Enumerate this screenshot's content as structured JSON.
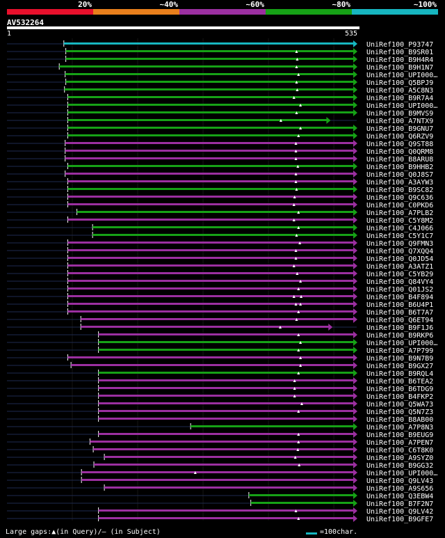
{
  "colors": {
    "red": "#e8102c",
    "orange": "#e87f1c",
    "purple": "#9b2fa0",
    "green": "#16a116",
    "cyan": "#17b6c0",
    "guide": "#1e2a50",
    "marker": "#ffffff"
  },
  "legend": [
    {
      "label": "20%",
      "color": "#e8102c"
    },
    {
      "label": "~40%",
      "color": "#e87f1c"
    },
    {
      "label": "~60%",
      "color": "#9b2fa0"
    },
    {
      "label": "~80%",
      "color": "#16a116"
    },
    {
      "label": "~100%",
      "color": "#17b6c0"
    }
  ],
  "query": {
    "name": "AV532264",
    "start": "1",
    "end": "535",
    "length": 535
  },
  "footer": {
    "gaps_text": "Large gaps:▲(in Query)/– (in Subject)",
    "scale_text": "=100char.",
    "scale_color": "#17b6c0"
  },
  "chart_data": {
    "type": "alignment",
    "title": "AV532264",
    "query_range": [
      1,
      535
    ],
    "hits": [
      {
        "name": "UniRef100_P93747",
        "start": 87,
        "end": 535,
        "color": "cyan",
        "gaps": []
      },
      {
        "name": "UniRef100_B9SR01",
        "start": 90,
        "end": 535,
        "color": "green",
        "gaps": [
          443
        ]
      },
      {
        "name": "UniRef100_B9H4R4",
        "start": 90,
        "end": 535,
        "color": "green",
        "gaps": [
          444
        ]
      },
      {
        "name": "UniRef100_B9H1N7",
        "start": 80,
        "end": 535,
        "color": "green",
        "gaps": [
          443
        ]
      },
      {
        "name": "UniRef100_UPI000…",
        "start": 89,
        "end": 535,
        "color": "green",
        "gaps": [
          446
        ]
      },
      {
        "name": "UniRef100_Q5BPJ9",
        "start": 90,
        "end": 535,
        "color": "green",
        "gaps": [
          443
        ]
      },
      {
        "name": "UniRef100_A5C8N3",
        "start": 88,
        "end": 535,
        "color": "green",
        "gaps": [
          444
        ]
      },
      {
        "name": "UniRef100_B9R7A4",
        "start": 93,
        "end": 535,
        "color": "green",
        "gaps": [
          439
        ]
      },
      {
        "name": "UniRef100_UPI000…",
        "start": 93,
        "end": 535,
        "color": "green",
        "gaps": [
          449
        ]
      },
      {
        "name": "UniRef100_B9MVS9",
        "start": 93,
        "end": 535,
        "color": "green",
        "gaps": [
          443
        ]
      },
      {
        "name": "UniRef100_A7NTX9",
        "start": 93,
        "end": 494,
        "color": "green",
        "gaps": [
          419
        ]
      },
      {
        "name": "UniRef100_B9GNU7",
        "start": 93,
        "end": 535,
        "color": "green",
        "gaps": [
          449
        ]
      },
      {
        "name": "UniRef100_Q6RZV9",
        "start": 93,
        "end": 535,
        "color": "green",
        "gaps": [
          446
        ]
      },
      {
        "name": "UniRef100_Q9ST88",
        "start": 89,
        "end": 535,
        "color": "purple",
        "gaps": [
          442
        ]
      },
      {
        "name": "UniRef100_Q0QRM8",
        "start": 89,
        "end": 535,
        "color": "purple",
        "gaps": [
          442
        ]
      },
      {
        "name": "UniRef100_B8ARU8",
        "start": 89,
        "end": 535,
        "color": "purple",
        "gaps": [
          442
        ]
      },
      {
        "name": "UniRef100_B9HHB2",
        "start": 93,
        "end": 535,
        "color": "green",
        "gaps": [
          445
        ]
      },
      {
        "name": "UniRef100_Q0J8S7",
        "start": 89,
        "end": 535,
        "color": "purple",
        "gaps": [
          442
        ]
      },
      {
        "name": "UniRef100_A3AYW3",
        "start": 93,
        "end": 535,
        "color": "purple",
        "gaps": [
          442
        ]
      },
      {
        "name": "UniRef100_B9SC82",
        "start": 93,
        "end": 535,
        "color": "green",
        "gaps": [
          443
        ]
      },
      {
        "name": "UniRef100_Q9C636",
        "start": 93,
        "end": 535,
        "color": "purple",
        "gaps": [
          440
        ]
      },
      {
        "name": "UniRef100_C0PKD6",
        "start": 93,
        "end": 535,
        "color": "purple",
        "gaps": [
          439
        ]
      },
      {
        "name": "UniRef100_A7PLB2",
        "start": 107,
        "end": 535,
        "color": "green",
        "gaps": [
          446
        ]
      },
      {
        "name": "UniRef100_C5Y8M2",
        "start": 93,
        "end": 535,
        "color": "purple",
        "gaps": [
          439
        ]
      },
      {
        "name": "UniRef100_C4J066",
        "start": 131,
        "end": 535,
        "color": "green",
        "gaps": [
          446
        ]
      },
      {
        "name": "UniRef100_C5Y1C7",
        "start": 131,
        "end": 535,
        "color": "green",
        "gaps": [
          443
        ]
      },
      {
        "name": "UniRef100_Q9FMN3",
        "start": 93,
        "end": 535,
        "color": "purple",
        "gaps": [
          448
        ]
      },
      {
        "name": "UniRef100_Q7XQQ4",
        "start": 93,
        "end": 535,
        "color": "purple",
        "gaps": [
          442
        ]
      },
      {
        "name": "UniRef100_Q0JD54",
        "start": 93,
        "end": 535,
        "color": "purple",
        "gaps": [
          442
        ]
      },
      {
        "name": "UniRef100_A3ATZ1",
        "start": 93,
        "end": 535,
        "color": "purple",
        "gaps": [
          439
        ]
      },
      {
        "name": "UniRef100_C5YB29",
        "start": 93,
        "end": 535,
        "color": "purple",
        "gaps": [
          444
        ]
      },
      {
        "name": "UniRef100_Q84VY4",
        "start": 93,
        "end": 535,
        "color": "purple",
        "gaps": [
          449
        ]
      },
      {
        "name": "UniRef100_Q01JS2",
        "start": 93,
        "end": 535,
        "color": "purple",
        "gaps": [
          446
        ]
      },
      {
        "name": "UniRef100_B4F894",
        "start": 93,
        "end": 535,
        "color": "purple",
        "gaps": [
          439,
          450
        ]
      },
      {
        "name": "UniRef100_B6U4P1",
        "start": 93,
        "end": 535,
        "color": "purple",
        "gaps": [
          442,
          449
        ]
      },
      {
        "name": "UniRef100_B6T7A7",
        "start": 93,
        "end": 535,
        "color": "purple",
        "gaps": [
          446
        ]
      },
      {
        "name": "UniRef100_Q6ET94",
        "start": 113,
        "end": 535,
        "color": "purple",
        "gaps": [
          443
        ]
      },
      {
        "name": "UniRef100_B9F1J6",
        "start": 113,
        "end": 497,
        "color": "purple",
        "gaps": [
          418
        ]
      },
      {
        "name": "UniRef100_B9RKP6",
        "start": 140,
        "end": 535,
        "color": "purple",
        "gaps": [
          446
        ]
      },
      {
        "name": "UniRef100_UPI000…",
        "start": 140,
        "end": 535,
        "color": "green",
        "gaps": [
          449
        ]
      },
      {
        "name": "UniRef100_A7P799",
        "start": 140,
        "end": 535,
        "color": "green",
        "gaps": [
          446
        ]
      },
      {
        "name": "UniRef100_B9N7B9",
        "start": 93,
        "end": 535,
        "color": "purple",
        "gaps": [
          449
        ]
      },
      {
        "name": "UniRef100_B9GX27",
        "start": 98,
        "end": 535,
        "color": "purple",
        "gaps": [
          449
        ]
      },
      {
        "name": "UniRef100_B9RQL4",
        "start": 140,
        "end": 535,
        "color": "green",
        "gaps": [
          446
        ]
      },
      {
        "name": "UniRef100_B6TEA2",
        "start": 140,
        "end": 535,
        "color": "purple",
        "gaps": [
          440
        ]
      },
      {
        "name": "UniRef100_B6TDG9",
        "start": 140,
        "end": 535,
        "color": "purple",
        "gaps": [
          440
        ]
      },
      {
        "name": "UniRef100_B4FKP2",
        "start": 140,
        "end": 535,
        "color": "purple",
        "gaps": [
          440
        ]
      },
      {
        "name": "UniRef100_Q5WA73",
        "start": 140,
        "end": 535,
        "color": "purple",
        "gaps": [
          451
        ]
      },
      {
        "name": "UniRef100_Q5N7Z3",
        "start": 140,
        "end": 535,
        "color": "purple",
        "gaps": [
          446
        ]
      },
      {
        "name": "UniRef100_B8AB00",
        "start": 140,
        "end": 535,
        "color": "purple",
        "gaps": []
      },
      {
        "name": "UniRef100_A7P8N3",
        "start": 281,
        "end": 535,
        "color": "green",
        "gaps": []
      },
      {
        "name": "UniRef100_B9EUG9",
        "start": 140,
        "end": 535,
        "color": "purple",
        "gaps": [
          446
        ]
      },
      {
        "name": "UniRef100_A7PEN7",
        "start": 127,
        "end": 535,
        "color": "purple",
        "gaps": [
          446
        ]
      },
      {
        "name": "UniRef100_C6T8K0",
        "start": 132,
        "end": 535,
        "color": "purple",
        "gaps": [
          445
        ]
      },
      {
        "name": "UniRef100_A9SYZ0",
        "start": 149,
        "end": 535,
        "color": "purple",
        "gaps": [
          441
        ]
      },
      {
        "name": "UniRef100_B9GG32",
        "start": 133,
        "end": 535,
        "color": "purple",
        "gaps": [
          447
        ]
      },
      {
        "name": "UniRef100_UPI000…",
        "start": 114,
        "end": 535,
        "color": "purple",
        "gaps": [
          288
        ]
      },
      {
        "name": "UniRef100_Q9LV43",
        "start": 114,
        "end": 535,
        "color": "purple",
        "gaps": []
      },
      {
        "name": "UniRef100_A9S656",
        "start": 149,
        "end": 535,
        "color": "purple",
        "gaps": []
      },
      {
        "name": "UniRef100_Q3EBW4",
        "start": 370,
        "end": 535,
        "color": "green",
        "gaps": []
      },
      {
        "name": "UniRef100_B7F2N7",
        "start": 373,
        "end": 535,
        "color": "green",
        "gaps": []
      },
      {
        "name": "UniRef100_Q9LV42",
        "start": 140,
        "end": 535,
        "color": "purple",
        "gaps": [
          442
        ]
      },
      {
        "name": "UniRef100_B9GFE7",
        "start": 140,
        "end": 535,
        "color": "purple",
        "gaps": [
          446
        ]
      }
    ]
  }
}
